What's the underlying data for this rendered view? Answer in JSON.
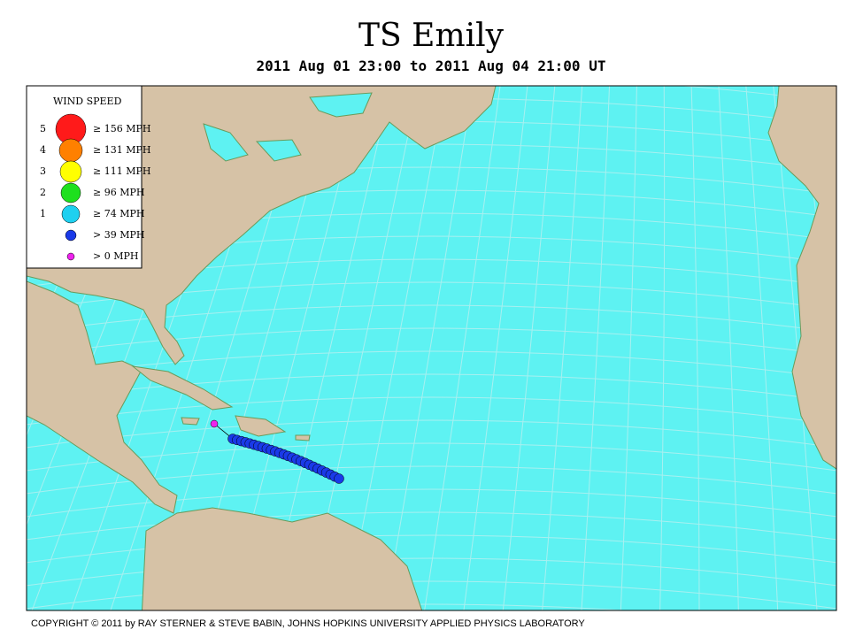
{
  "header": {
    "title": "TS Emily",
    "subtitle": "2011 Aug 01 23:00 to 2011 Aug 04 21:00 UT"
  },
  "legend": {
    "title": "WIND SPEED",
    "entries": [
      {
        "category": "5",
        "label": "≥ 156 MPH"
      },
      {
        "category": "4",
        "label": "≥ 131 MPH"
      },
      {
        "category": "3",
        "label": "≥ 111 MPH"
      },
      {
        "category": "2",
        "label": "≥ 96 MPH"
      },
      {
        "category": "1",
        "label": "≥ 74 MPH"
      },
      {
        "label": "> 39 MPH"
      },
      {
        "label": "> 0 MPH"
      }
    ]
  },
  "footer": {
    "copyright": "COPYRIGHT © 2011 by RAY STERNER & STEVE BABIN, JOHNS HOPKINS UNIVERSITY APPLIED PHYSICS LABORATORY"
  }
}
